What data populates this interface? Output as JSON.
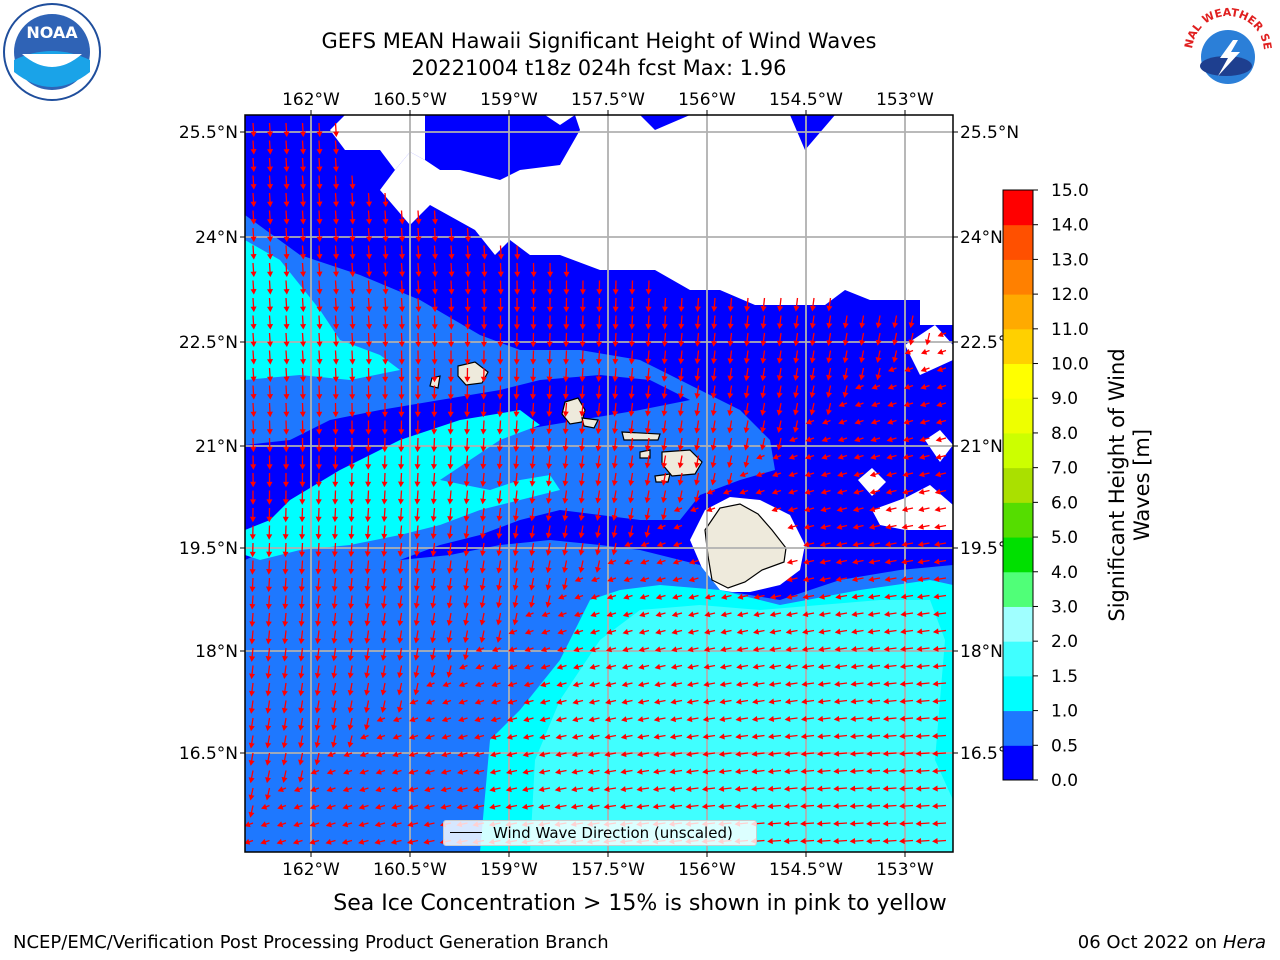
{
  "header": {
    "title_line1": "GEFS MEAN Hawaii Significant Height of Wind Waves",
    "title_line2": "20221004 t18z 024h fcst   Max: 1.96"
  },
  "logos": {
    "left": {
      "name": "noaa-logo",
      "text": "NOAA"
    },
    "right": {
      "name": "nws-logo",
      "text": "NATIONAL WEATHER SERVICE"
    }
  },
  "map": {
    "lon_labels": [
      "162°W",
      "160.5°W",
      "159°W",
      "157.5°W",
      "156°W",
      "154.5°W",
      "153°W"
    ],
    "lat_labels": [
      "25.5°N",
      "24°N",
      "22.5°N",
      "21°N",
      "19.5°N",
      "18°N",
      "16.5°N"
    ],
    "lon_range": [
      -163,
      -152.6
    ],
    "lat_range": [
      15.3,
      25.7
    ],
    "legend_label": "Wind Wave Direction (unscaled)"
  },
  "colorbar": {
    "label_line1": "Significant Height of Wind",
    "label_line2": "Waves [m]",
    "ticks": [
      "0.0",
      "0.5",
      "1.0",
      "1.5",
      "2.0",
      "3.0",
      "4.0",
      "5.0",
      "6.0",
      "7.0",
      "8.0",
      "9.0",
      "10.0",
      "11.0",
      "12.0",
      "13.0",
      "14.0",
      "15.0"
    ],
    "colors": [
      "#0000ff",
      "#1e78ff",
      "#00ffff",
      "#40ffff",
      "#a0ffff",
      "#50ff78",
      "#00e000",
      "#55dd00",
      "#aae000",
      "#ccff00",
      "#eeff00",
      "#ffff00",
      "#ffd000",
      "#ffaa00",
      "#ff8000",
      "#ff5000",
      "#ff0000"
    ]
  },
  "colors": {
    "arrow": "#ff0000",
    "land": "#eeeadc",
    "grid": "#b0b0b0"
  },
  "caption": "Sea Ice Concentration > 15% is shown in pink to yellow",
  "footer": {
    "left": "NCEP/EMC/Verification Post Processing Product Generation Branch",
    "date": "06 Oct 2022 on ",
    "machine": "Hera"
  }
}
